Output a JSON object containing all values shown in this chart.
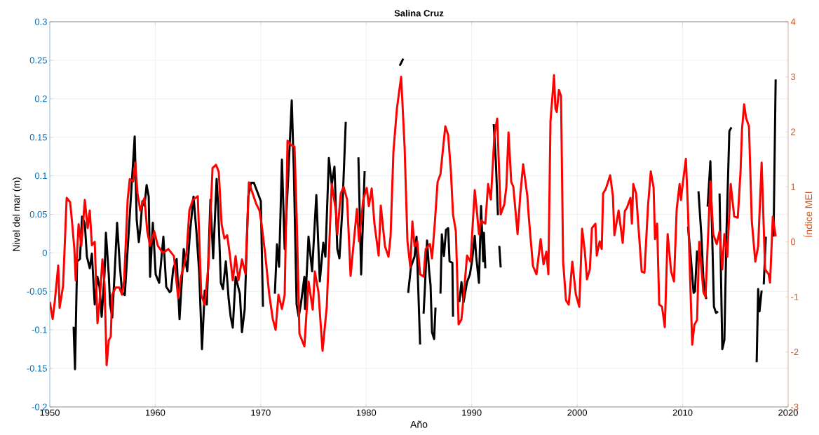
{
  "chart_data": {
    "type": "line",
    "title": "Salina Cruz",
    "xlabel": "Año",
    "ylabel": "Nivel del mar (m)",
    "y2label": "Índice MEI",
    "xlim": [
      1950,
      2020
    ],
    "xticks": [
      1950,
      1960,
      1970,
      1980,
      1990,
      2000,
      2010,
      2020
    ],
    "ylim": [
      -0.2,
      0.3
    ],
    "yticks": [
      -0.2,
      -0.15,
      -0.1,
      -0.05,
      0,
      0.05,
      0.1,
      0.15,
      0.2,
      0.25,
      0.3
    ],
    "y2lim": [
      -3,
      4
    ],
    "y2ticks": [
      -3,
      -2,
      -1,
      0,
      1,
      2,
      3,
      4
    ],
    "grid": true,
    "series": [
      {
        "color": "#000000",
        "x": [
          1952.26,
          1952.39,
          1952.59,
          1952.86,
          1953.06,
          1953.32,
          1953.52,
          1953.79,
          1953.99,
          1954.26,
          1954.52,
          1954.72,
          1954.92,
          1955.19,
          1955.32,
          1955.59,
          1955.72,
          1955.92,
          1956.18,
          1956.38,
          1956.65,
          1956.85,
          1957.11,
          1958.05,
          1958.24,
          1958.44,
          1958.58,
          1958.78,
          1958.98,
          1959.18,
          1959.38,
          1959.51,
          1959.77,
          1960.04,
          1960.37,
          1960.77,
          1961.04,
          1961.37,
          1961.5,
          1961.7,
          1962.03,
          1962.3,
          1962.7,
          1963.03,
          1963.3,
          1963.63,
          1963.9,
          1964.16,
          1964.43,
          1964.69,
          1964.89,
          1965.23,
          1965.49,
          1965.82,
          1965.96,
          1966.22,
          1966.42,
          1966.69,
          1966.96,
          1967.15,
          1967.35,
          1967.62,
          1968.02,
          1968.22,
          1968.48,
          1968.82,
          1969.08,
          1969.35,
          1970.01,
          1970.21,
          1970.8,
          1971.34,
          1971.54,
          1971.74,
          1972.01,
          1972.27,
          1972.61,
          1972.94,
          1973.14,
          1973.4,
          1973.6,
          1973.8,
          1974.14,
          1974.2,
          1974.53,
          1974.87,
          1975.27,
          1975.6,
          1975.93,
          1976.13,
          1976.46,
          1976.73,
          1976.99,
          1977.26,
          1977.46,
          1977.73,
          1978.06,
          1978.7,
          1979.26,
          1979.52,
          1979.85,
          1981.5,
          1983.18,
          1983.51,
          1983.75,
          1983.98,
          1984.24,
          1984.58,
          1984.77,
          1985.11,
          1985.3,
          1985.44,
          1985.57,
          1985.77,
          1985.97,
          1986.1,
          1986.24,
          1986.44,
          1986.57,
          1986.8,
          1987.04,
          1987.17,
          1987.37,
          1987.57,
          1987.77,
          1987.9,
          1988.17,
          1988.23,
          1988.5,
          1988.83,
          1989.03,
          1989.23,
          1989.56,
          1989.83,
          1990.03,
          1990.29,
          1990.43,
          1990.69,
          1990.89,
          1991.09,
          1991.16,
          1991.29,
          1991.7,
          1992.09,
          1992.29,
          1992.49,
          1992.55,
          1992.62,
          1992.75,
          2001.0,
          2010.51,
          2010.77,
          2011.04,
          2011.17,
          2011.37,
          2011.44,
          2011.5,
          2011.77,
          2011.97,
          2012.24,
          2012.3,
          2012.37,
          2012.63,
          2012.77,
          2012.97,
          2013.17,
          2013.36,
          2013.43,
          2013.5,
          2013.76,
          2013.96,
          2014.16,
          2014.43,
          2014.63,
          2015.8,
          2017.02,
          2017.16,
          2017.29,
          2017.49,
          2017.59,
          2017.69,
          2017.89,
          2018.3,
          2018.62,
          2018.82
        ],
        "values": [
          -0.096,
          -0.151,
          -0.011,
          -0.008,
          0.047,
          0.038,
          -0.005,
          -0.02,
          -0.001,
          -0.067,
          -0.031,
          -0.045,
          -0.083,
          -0.028,
          0.026,
          -0.028,
          -0.067,
          -0.084,
          -0.018,
          0.039,
          -0.018,
          -0.051,
          -0.055,
          0.151,
          0.043,
          0.014,
          0.031,
          0.067,
          0.061,
          0.088,
          0.073,
          -0.031,
          0.039,
          -0.028,
          -0.039,
          0.021,
          -0.044,
          -0.051,
          -0.049,
          -0.021,
          -0.008,
          -0.086,
          0.005,
          -0.024,
          0.028,
          0.073,
          0.028,
          -0.024,
          -0.125,
          -0.049,
          -0.067,
          0.069,
          -0.007,
          0.096,
          0.061,
          -0.039,
          -0.047,
          -0.011,
          -0.06,
          -0.083,
          -0.097,
          -0.031,
          -0.053,
          -0.103,
          -0.073,
          0.073,
          0.091,
          0.091,
          0.067,
          -0.07,
          null,
          -0.053,
          0.011,
          -0.018,
          0.121,
          0.005,
          0.1,
          0.198,
          0.106,
          -0.067,
          -0.083,
          -0.067,
          -0.031,
          -0.073,
          0.021,
          -0.024,
          0.075,
          -0.037,
          0.013,
          -0.005,
          0.123,
          0.089,
          0.112,
          0.005,
          -0.007,
          0.054,
          0.17,
          null,
          0.124,
          -0.028,
          0.106,
          null,
          0.243,
          0.252,
          null,
          -0.052,
          -0.018,
          -0.005,
          0.021,
          -0.119,
          null,
          -0.079,
          -0.044,
          0.016,
          -0.024,
          -0.042,
          -0.103,
          -0.112,
          -0.071,
          null,
          -0.053,
          0.024,
          -0.004,
          0.03,
          0.032,
          -0.011,
          -0.013,
          -0.083,
          null,
          -0.064,
          -0.038,
          -0.064,
          -0.038,
          -0.028,
          -0.011,
          0.022,
          -0.005,
          -0.039,
          0.061,
          -0.011,
          0.026,
          -0.02,
          null,
          0.167,
          0.119,
          0.049,
          null,
          0.009,
          -0.019,
          null,
          0.034,
          -0.005,
          -0.052,
          -0.05,
          0.003,
          null,
          0.08,
          0.024,
          -0.034,
          -0.06,
          null,
          0.06,
          0.119,
          0.04,
          -0.07,
          -0.078,
          -0.076,
          null,
          0.077,
          -0.125,
          -0.113,
          0.028,
          0.158,
          0.163,
          null,
          -0.142,
          -0.047,
          -0.076,
          -0.049,
          null,
          -0.041,
          0.021,
          null,
          0.021,
          0.225
        ]
      },
      {
        "color": "#ff0000",
        "axis": "y2",
        "x": [
          1950.0,
          1950.27,
          1950.47,
          1950.8,
          1950.93,
          1951.26,
          1951.6,
          1951.93,
          1952.13,
          1952.33,
          1952.46,
          1952.73,
          1952.99,
          1953.32,
          1953.59,
          1953.79,
          1953.99,
          1954.26,
          1954.52,
          1954.72,
          1954.99,
          1955.19,
          1955.39,
          1955.59,
          1955.78,
          1955.92,
          1956.25,
          1956.58,
          1956.85,
          1957.05,
          1957.38,
          1957.58,
          1957.91,
          1958.11,
          1958.31,
          1958.58,
          1958.78,
          1958.98,
          1959.24,
          1959.51,
          1959.91,
          1960.24,
          1960.71,
          1961.24,
          1961.77,
          1962.17,
          1962.43,
          1962.7,
          1962.97,
          1963.23,
          1963.56,
          1964.03,
          1964.36,
          1964.69,
          1965.03,
          1965.43,
          1965.76,
          1966.02,
          1966.29,
          1966.56,
          1966.82,
          1967.09,
          1967.35,
          1967.62,
          1967.89,
          1968.22,
          1968.55,
          1968.88,
          1969.22,
          1969.55,
          1969.88,
          1970.08,
          1970.41,
          1970.81,
          1971.14,
          1971.41,
          1971.68,
          1972.01,
          1972.27,
          1972.54,
          1972.87,
          1973.2,
          1973.4,
          1973.67,
          1974.14,
          1974.53,
          1974.93,
          1975.13,
          1975.47,
          1975.86,
          1976.26,
          1976.73,
          1977.13,
          1977.26,
          1977.59,
          1977.86,
          1978.19,
          1978.52,
          1979.12,
          1979.32,
          1979.72,
          1980.05,
          1980.25,
          1980.52,
          1980.78,
          1981.18,
          1981.38,
          1981.78,
          1982.11,
          1982.31,
          1982.58,
          1982.91,
          1983.31,
          1983.64,
          1983.91,
          1984.18,
          1984.38,
          1984.58,
          1984.84,
          1985.11,
          1985.44,
          1985.64,
          1986.04,
          1986.24,
          1986.5,
          1986.77,
          1987.04,
          1987.3,
          1987.5,
          1987.77,
          1988.03,
          1988.23,
          1988.5,
          1988.76,
          1989.03,
          1989.23,
          1989.56,
          1989.89,
          1990.29,
          1990.49,
          1990.69,
          1990.89,
          1991.29,
          1991.56,
          1991.82,
          1992.16,
          1992.42,
          1992.75,
          1993.09,
          1993.29,
          1993.49,
          1993.75,
          1993.95,
          1994.35,
          1994.62,
          1994.88,
          1995.28,
          1995.41,
          1995.81,
          1996.14,
          1996.54,
          1996.81,
          1997.08,
          1997.27,
          1997.47,
          1997.81,
          1997.94,
          1998.07,
          1998.27,
          1998.47,
          1998.67,
          1998.94,
          1999.2,
          1999.54,
          1999.87,
          2000.2,
          2000.47,
          2000.73,
          2000.93,
          2001.2,
          2001.4,
          2001.73,
          2001.86,
          2002.13,
          2002.33,
          2002.46,
          2002.73,
          2003.13,
          2003.39,
          2003.53,
          2003.93,
          2004.32,
          2004.52,
          2004.72,
          2005.05,
          2005.19,
          2005.32,
          2005.59,
          2005.79,
          2006.12,
          2006.38,
          2006.72,
          2006.98,
          2007.25,
          2007.38,
          2007.58,
          2007.78,
          2008.05,
          2008.31,
          2008.58,
          2008.91,
          2009.18,
          2009.44,
          2009.71,
          2009.84,
          2010.04,
          2010.31,
          2010.51,
          2010.91,
          2011.11,
          2011.37,
          2011.57,
          2011.97,
          2012.17,
          2012.63,
          2012.9,
          2013.23,
          2013.5,
          2013.76,
          2013.96,
          2014.23,
          2014.56,
          2014.89,
          2015.23,
          2015.49,
          2015.63,
          2015.83,
          2016.02,
          2016.29,
          2016.56,
          2016.89,
          2017.16,
          2017.49,
          2017.82,
          2018.15,
          2018.29,
          2018.55,
          2018.82
        ],
        "values": [
          -1.09,
          -1.4,
          -1.09,
          -0.43,
          -1.2,
          -0.8,
          0.8,
          0.72,
          0.32,
          -0.13,
          -0.7,
          0.32,
          -0.07,
          0.76,
          0.25,
          0.57,
          -0.06,
          0.0,
          -1.48,
          -1.09,
          -0.32,
          -0.77,
          -2.24,
          -1.79,
          -1.72,
          -0.96,
          -0.83,
          -0.83,
          -0.96,
          -0.7,
          0.76,
          1.14,
          1.1,
          1.44,
          0.89,
          0.57,
          0.7,
          0.8,
          0.19,
          -0.07,
          0.19,
          -0.07,
          -0.2,
          -0.13,
          -0.26,
          -1.02,
          -0.64,
          -0.45,
          -0.2,
          0.57,
          0.76,
          0.83,
          -0.96,
          -1.15,
          -0.45,
          1.34,
          1.4,
          1.27,
          0.32,
          0.06,
          0.12,
          -0.26,
          -0.7,
          -0.26,
          -0.7,
          -0.32,
          -0.58,
          1.08,
          0.89,
          0.7,
          0.57,
          0.32,
          -0.2,
          -0.96,
          -1.4,
          -1.6,
          -0.96,
          -1.22,
          -0.96,
          1.84,
          1.76,
          1.73,
          0.5,
          -1.67,
          -1.9,
          -0.72,
          -1.23,
          -0.54,
          -0.91,
          -1.98,
          -1.18,
          1.05,
          0.56,
          0.14,
          0.88,
          1.0,
          0.77,
          -0.62,
          0.6,
          0.01,
          0.77,
          0.98,
          0.65,
          0.97,
          0.33,
          -0.25,
          0.66,
          -0.08,
          -0.27,
          0.1,
          1.64,
          2.42,
          3.0,
          1.73,
          0.01,
          -0.46,
          0.37,
          -0.08,
          0.01,
          -0.59,
          -0.63,
          -0.13,
          -0.04,
          -0.3,
          0.33,
          1.09,
          1.23,
          1.73,
          2.1,
          1.94,
          1.28,
          0.5,
          0.19,
          -1.5,
          -1.41,
          -1.0,
          -0.25,
          -0.36,
          0.94,
          0.56,
          0.14,
          0.39,
          0.33,
          1.05,
          0.77,
          1.96,
          2.24,
          0.5,
          0.68,
          1.0,
          1.99,
          1.09,
          1.0,
          0.14,
          0.88,
          1.41,
          0.83,
          0.46,
          -0.44,
          -0.59,
          0.05,
          -0.41,
          -0.18,
          -0.59,
          2.19,
          3.03,
          2.42,
          2.36,
          2.76,
          2.65,
          -0.36,
          -1.06,
          -1.14,
          -0.36,
          -0.95,
          -1.18,
          0.24,
          -0.18,
          -0.68,
          -0.5,
          0.25,
          0.33,
          -0.25,
          0.01,
          -0.13,
          0.88,
          0.97,
          1.21,
          0.83,
          0.12,
          0.57,
          -0.02,
          0.56,
          0.62,
          0.8,
          0.33,
          1.05,
          0.88,
          0.33,
          -0.54,
          -0.56,
          0.66,
          1.28,
          0.98,
          0.05,
          0.33,
          -1.14,
          -1.18,
          -1.55,
          0.14,
          -0.54,
          -0.72,
          0.6,
          1.05,
          0.76,
          1.1,
          1.51,
          0.56,
          -1.87,
          -1.51,
          -1.42,
          0.0,
          -0.91,
          -1.0,
          1.1,
          0.14,
          -0.04,
          0.19,
          -0.5,
          0.14,
          -0.27,
          1.05,
          0.46,
          0.44,
          1.28,
          2.04,
          2.5,
          2.25,
          2.1,
          0.37,
          -0.36,
          -0.08,
          1.44,
          -0.5,
          -0.59,
          -0.74,
          0.46,
          0.1
        ]
      }
    ]
  }
}
